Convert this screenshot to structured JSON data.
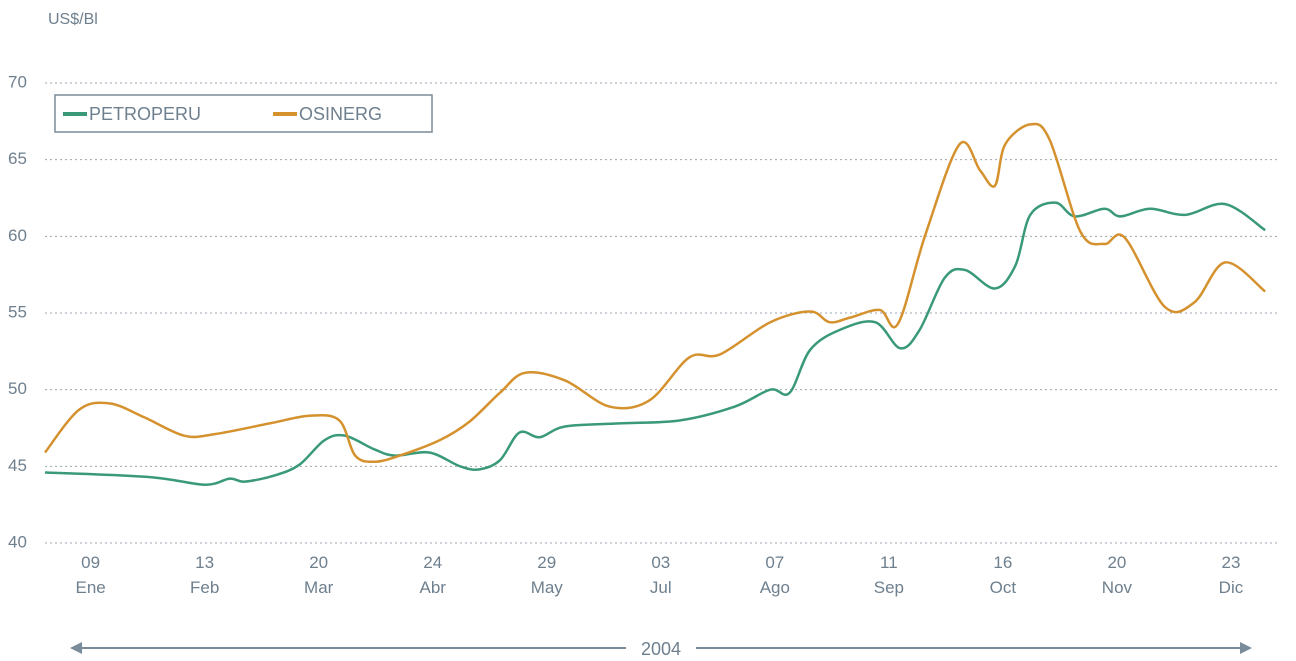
{
  "chart_data": {
    "type": "line",
    "y_label": "US$/Bl",
    "x_label": "2004",
    "xlim": [
      -0.4,
      10.43
    ],
    "xticks": [
      {
        "value": 0,
        "label": "09\nEne"
      },
      {
        "value": 1,
        "label": "13\nFeb"
      },
      {
        "value": 2,
        "label": "20\nMar"
      },
      {
        "value": 3,
        "label": "24\nAbr"
      },
      {
        "value": 4,
        "label": "29\nMay"
      },
      {
        "value": 5,
        "label": "03\nJul"
      },
      {
        "value": 6,
        "label": "07\nAgo"
      },
      {
        "value": 7,
        "label": "11\nSep"
      },
      {
        "value": 8,
        "label": "16\nOct"
      },
      {
        "value": 9,
        "label": "20\nNov"
      },
      {
        "value": 10,
        "label": "23\nDic"
      }
    ],
    "ylim": [
      40,
      70
    ],
    "yticks": [
      40,
      45,
      50,
      55,
      60,
      65,
      70
    ],
    "grid": true,
    "legend": "upper left",
    "series": [
      {
        "name": "PETROPERU",
        "color": "#3a9a78",
        "x": [
          -0.4,
          0.52,
          1.0,
          1.22,
          1.35,
          1.61,
          1.83,
          2.05,
          2.23,
          2.49,
          2.67,
          2.97,
          3.24,
          3.41,
          3.59,
          3.76,
          3.94,
          4.16,
          4.64,
          5.17,
          5.65,
          5.96,
          6.13,
          6.31,
          6.57,
          6.88,
          7.1,
          7.27,
          7.49,
          7.67,
          7.93,
          8.11,
          8.24,
          8.46,
          8.63,
          8.89,
          9.03,
          9.29,
          9.6,
          9.95,
          10.3
        ],
        "values": [
          44.6,
          44.3,
          43.8,
          44.2,
          44.0,
          44.4,
          45.1,
          46.7,
          47.0,
          46.1,
          45.7,
          45.9,
          45.0,
          44.8,
          45.4,
          47.2,
          46.9,
          47.6,
          47.8,
          48.0,
          48.9,
          50.0,
          49.8,
          52.6,
          53.9,
          54.4,
          52.7,
          53.9,
          57.3,
          57.8,
          56.6,
          58.1,
          61.4,
          62.2,
          61.3,
          61.8,
          61.3,
          61.8,
          61.4,
          62.1,
          60.4
        ]
      },
      {
        "name": "OSINERG",
        "color": "#d4912e",
        "x": [
          -0.4,
          -0.1,
          0.17,
          0.47,
          0.82,
          1.09,
          1.57,
          1.92,
          2.18,
          2.32,
          2.49,
          2.71,
          3.06,
          3.32,
          3.59,
          3.81,
          4.16,
          4.55,
          4.9,
          5.25,
          5.52,
          5.96,
          6.31,
          6.48,
          6.66,
          6.92,
          7.08,
          7.32,
          7.62,
          7.8,
          7.93,
          8.02,
          8.24,
          8.41,
          8.68,
          8.89,
          9.07,
          9.42,
          9.68,
          9.95,
          10.3
        ],
        "values": [
          45.9,
          48.7,
          49.1,
          48.2,
          47.0,
          47.1,
          47.8,
          48.3,
          48.0,
          45.7,
          45.3,
          45.7,
          46.7,
          47.9,
          49.8,
          51.1,
          50.6,
          48.9,
          49.3,
          52.1,
          52.3,
          54.4,
          55.1,
          54.4,
          54.7,
          55.2,
          54.3,
          60.1,
          66.0,
          64.3,
          63.3,
          66.0,
          67.3,
          66.3,
          60.3,
          59.5,
          59.9,
          55.4,
          55.7,
          58.3,
          56.4
        ]
      }
    ]
  }
}
